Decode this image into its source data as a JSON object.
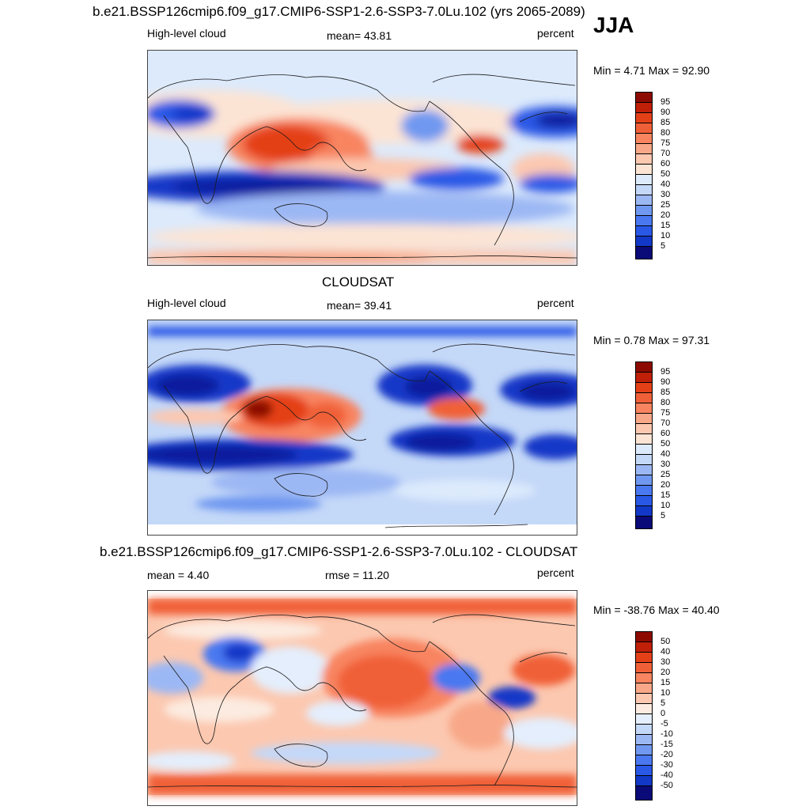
{
  "season": "JJA",
  "top_title": "b.e21.BSSP126cmip6.f09_g17.CMIP6-SSP1-2.6-SSP3-7.0Lu.102 (yrs 2065-2089)",
  "middle_title": "CLOUDSAT",
  "bottom_title": "b.e21.BSSP126cmip6.f09_g17.CMIP6-SSP1-2.6-SSP3-7.0Lu.102 - CLOUDSAT",
  "colors": {
    "abs_scale": [
      "#0a0a78",
      "#0a1e9e",
      "#1238c8",
      "#2a58e6",
      "#4a78f0",
      "#7098f0",
      "#9cb8f4",
      "#c4d8f8",
      "#dceafc",
      "#fce4d4",
      "#fcc8b0",
      "#f8a888",
      "#f88460",
      "#f06038",
      "#e44018",
      "#c02008",
      "#8c0a00"
    ],
    "diff_scale": [
      "#0a0a78",
      "#0a1e9e",
      "#1238c8",
      "#2a58e6",
      "#4a78f0",
      "#7098f0",
      "#9cb8f4",
      "#c4d8f8",
      "#e4eefc",
      "#fcebe0",
      "#fcc8b0",
      "#f8a888",
      "#f88460",
      "#f06038",
      "#e44018",
      "#c02008",
      "#8c0a00"
    ]
  },
  "panels": [
    {
      "id": "model",
      "left_label": "High-level cloud",
      "center_label": "mean=  43.81",
      "right_label": "percent",
      "minmax": "Min =   4.71 Max =  92.90",
      "colorbar_labels": [
        "95",
        "90",
        "85",
        "80",
        "75",
        "70",
        "60",
        "50",
        "40",
        "30",
        "25",
        "20",
        "15",
        "10",
        "5"
      ]
    },
    {
      "id": "obs",
      "left_label": "High-level cloud",
      "center_label": "mean=  39.41",
      "right_label": "percent",
      "minmax": "Min =   0.78 Max =  97.31",
      "colorbar_labels": [
        "95",
        "90",
        "85",
        "80",
        "75",
        "70",
        "60",
        "50",
        "40",
        "30",
        "25",
        "20",
        "15",
        "10",
        "5"
      ]
    },
    {
      "id": "diff",
      "left_label": "mean =   4.40",
      "center_label": "rmse =  11.20",
      "right_label": "percent",
      "minmax": "Min = -38.76 Max =  40.40",
      "colorbar_labels": [
        "50",
        "40",
        "30",
        "20",
        "15",
        "10",
        "5",
        "0",
        "-5",
        "-10",
        "-15",
        "-20",
        "-30",
        "-40",
        "-50"
      ]
    }
  ]
}
